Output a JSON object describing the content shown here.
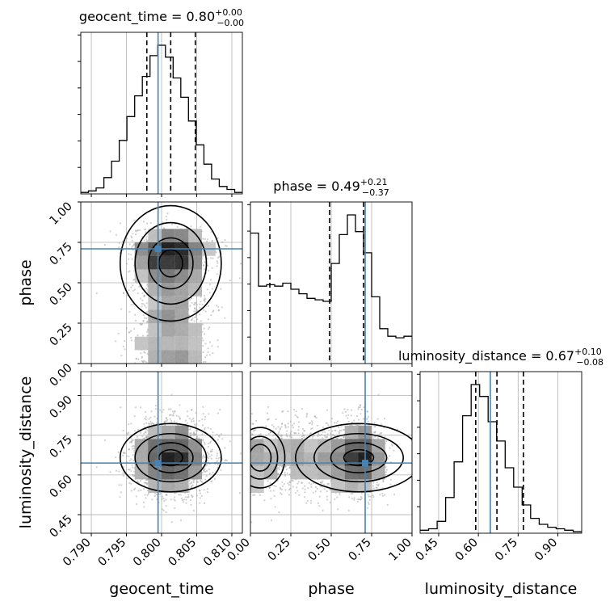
{
  "chart_data": {
    "type": "corner",
    "parameters": [
      {
        "key": "geocent_time",
        "label": "geocent_time",
        "range": [
          0.7885,
          0.8115
        ],
        "ticks": [
          0.79,
          0.795,
          0.8,
          0.805,
          0.81
        ],
        "tick_labels": [
          "0.790",
          "0.795",
          "0.800",
          "0.805",
          "0.810"
        ],
        "truth": 0.7995
      },
      {
        "key": "phase",
        "label": "phase",
        "range": [
          0.0,
          1.0
        ],
        "ticks": [
          0.0,
          0.25,
          0.5,
          0.75,
          1.0
        ],
        "tick_labels": [
          "0.00",
          "0.25",
          "0.50",
          "0.75",
          "1.00"
        ],
        "truth": 0.71
      },
      {
        "key": "luminosity_distance",
        "label": "luminosity_distance",
        "range": [
          0.38,
          0.99
        ],
        "ticks": [
          0.45,
          0.6,
          0.75,
          0.9
        ],
        "tick_labels": [
          "0.45",
          "0.60",
          "0.75",
          "0.90"
        ],
        "truth": 0.645
      }
    ],
    "titles": [
      {
        "name": "geocent_time",
        "median": "0.80",
        "plus": "+0.00",
        "minus": "−0.00"
      },
      {
        "name": "phase",
        "median": "0.49",
        "plus": "+0.21",
        "minus": "−0.37"
      },
      {
        "name": "luminosity_distance",
        "median": "0.67",
        "plus": "+0.10",
        "minus": "−0.08"
      }
    ],
    "quantiles": [
      [
        0.7979,
        0.8013,
        0.8048
      ],
      [
        0.12,
        0.49,
        0.7
      ],
      [
        0.59,
        0.67,
        0.77
      ]
    ],
    "histograms": [
      {
        "edges_start": 0.7885,
        "edges_end": 0.8115,
        "counts": [
          1,
          2,
          4,
          11,
          22,
          36,
          52,
          66,
          79,
          93,
          100,
          92,
          78,
          65,
          49,
          33,
          20,
          10,
          5,
          3,
          1
        ]
      },
      {
        "edges_start": 0.0,
        "edges_end": 1.0,
        "counts": [
          86,
          51,
          52,
          51,
          53,
          49,
          46,
          43,
          42,
          41,
          66,
          85,
          98,
          87,
          73,
          44,
          23,
          18,
          17,
          18
        ]
      },
      {
        "edges_start": 0.38,
        "edges_end": 0.99,
        "counts": [
          2,
          3,
          8,
          24,
          48,
          79,
          100,
          92,
          75,
          62,
          44,
          31,
          19,
          10,
          6,
          4,
          3,
          2,
          1
        ]
      }
    ],
    "grid": true,
    "truth_color": "#4682b4",
    "contour_color": "#000000",
    "point_color": "#9a9a9a"
  }
}
